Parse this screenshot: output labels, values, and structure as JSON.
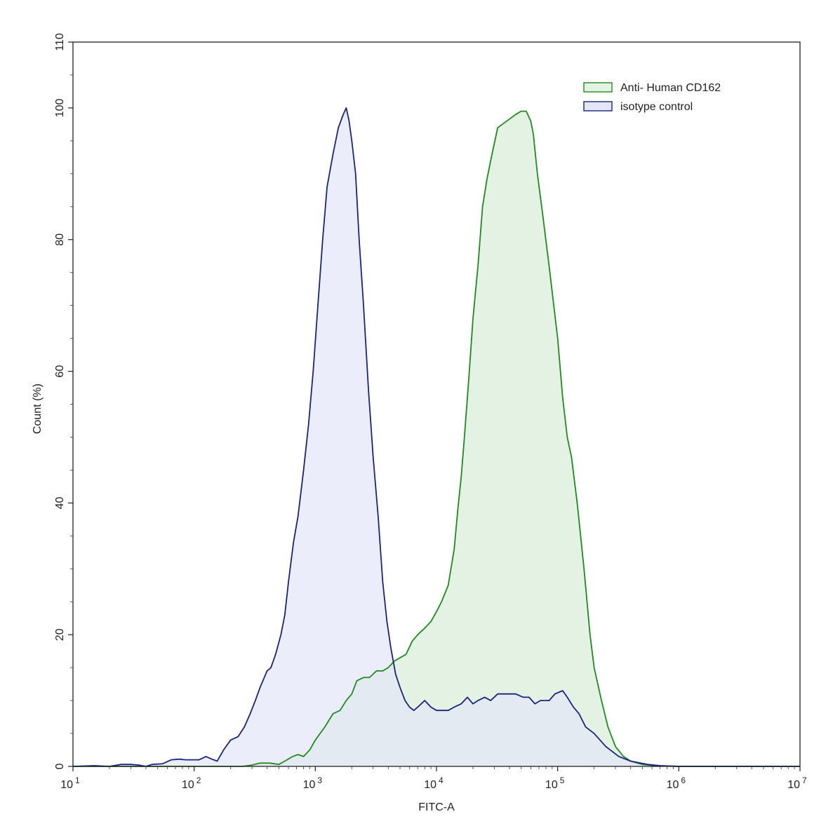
{
  "chart_data": {
    "type": "area",
    "title": "",
    "xlabel": "FITC-A",
    "ylabel": "Count  (%)",
    "x_scale": "log",
    "xlim": [
      10,
      10000000
    ],
    "ylim": [
      0,
      110
    ],
    "x_ticks": [
      {
        "value": 10,
        "base": "10",
        "exp": "1"
      },
      {
        "value": 100,
        "base": "10",
        "exp": "2"
      },
      {
        "value": 1000,
        "base": "10",
        "exp": "3"
      },
      {
        "value": 10000,
        "base": "10",
        "exp": "4"
      },
      {
        "value": 100000,
        "base": "10",
        "exp": "5"
      },
      {
        "value": 1000000,
        "base": "10",
        "exp": "6"
      },
      {
        "value": 10000000,
        "base": "10",
        "exp": "7"
      }
    ],
    "y_ticks": [
      "0",
      "20",
      "40",
      "60",
      "80",
      "100",
      "110"
    ],
    "grid": false,
    "legend_position": "top-right",
    "series": [
      {
        "name": "Anti- Human CD162",
        "stroke": "#1f8a1f",
        "fill": "#e3f2e3",
        "points": [
          [
            10,
            0
          ],
          [
            100,
            0
          ],
          [
            200,
            0
          ],
          [
            250,
            0
          ],
          [
            300,
            0.2
          ],
          [
            350,
            0.5
          ],
          [
            420,
            0.5
          ],
          [
            500,
            0.3
          ],
          [
            560,
            0.8
          ],
          [
            650,
            1.5
          ],
          [
            720,
            1.8
          ],
          [
            800,
            1.5
          ],
          [
            900,
            2.5
          ],
          [
            1000,
            4
          ],
          [
            1200,
            6
          ],
          [
            1400,
            8
          ],
          [
            1600,
            8.5
          ],
          [
            1800,
            10
          ],
          [
            2000,
            11
          ],
          [
            2200,
            13
          ],
          [
            2500,
            13.5
          ],
          [
            2800,
            13.5
          ],
          [
            3200,
            14.5
          ],
          [
            3600,
            14.5
          ],
          [
            4000,
            15
          ],
          [
            4500,
            16
          ],
          [
            5000,
            16.5
          ],
          [
            5600,
            17
          ],
          [
            6300,
            19
          ],
          [
            7000,
            20
          ],
          [
            8000,
            21
          ],
          [
            9000,
            22
          ],
          [
            10000,
            23.5
          ],
          [
            11000,
            25
          ],
          [
            12500,
            27.5
          ],
          [
            14000,
            33
          ],
          [
            15000,
            39
          ],
          [
            16000,
            44
          ],
          [
            17000,
            50
          ],
          [
            18500,
            59
          ],
          [
            20000,
            68
          ],
          [
            22000,
            76
          ],
          [
            24000,
            85
          ],
          [
            26000,
            89
          ],
          [
            28000,
            92
          ],
          [
            32000,
            97
          ],
          [
            38000,
            98
          ],
          [
            45000,
            99
          ],
          [
            50000,
            99.5
          ],
          [
            55000,
            99.5
          ],
          [
            60000,
            98
          ],
          [
            63000,
            96
          ],
          [
            68000,
            90
          ],
          [
            75000,
            84
          ],
          [
            85000,
            76
          ],
          [
            100000,
            65
          ],
          [
            110000,
            56
          ],
          [
            120000,
            50
          ],
          [
            130000,
            47
          ],
          [
            145000,
            40
          ],
          [
            165000,
            30
          ],
          [
            185000,
            20
          ],
          [
            200000,
            15
          ],
          [
            230000,
            10
          ],
          [
            260000,
            6
          ],
          [
            300000,
            3
          ],
          [
            350000,
            1.5
          ],
          [
            400000,
            0.8
          ],
          [
            500000,
            0.3
          ],
          [
            650000,
            0.1
          ],
          [
            1000000,
            0
          ],
          [
            10000000,
            0
          ]
        ]
      },
      {
        "name": "isotype control",
        "stroke": "#1a237e",
        "fill": "#e4e6f8",
        "points": [
          [
            10,
            0
          ],
          [
            15,
            0.1
          ],
          [
            20,
            0
          ],
          [
            25,
            0.3
          ],
          [
            30,
            0.3
          ],
          [
            35,
            0.2
          ],
          [
            40,
            0
          ],
          [
            45,
            0.3
          ],
          [
            55,
            0.4
          ],
          [
            65,
            1
          ],
          [
            75,
            1.1
          ],
          [
            85,
            1
          ],
          [
            95,
            1
          ],
          [
            110,
            1
          ],
          [
            125,
            1.5
          ],
          [
            140,
            1.1
          ],
          [
            155,
            0.8
          ],
          [
            175,
            2.5
          ],
          [
            200,
            4
          ],
          [
            230,
            4.5
          ],
          [
            260,
            6
          ],
          [
            290,
            8
          ],
          [
            320,
            10
          ],
          [
            350,
            12
          ],
          [
            400,
            14.5
          ],
          [
            430,
            15
          ],
          [
            470,
            17
          ],
          [
            520,
            20
          ],
          [
            560,
            23
          ],
          [
            600,
            28
          ],
          [
            660,
            34
          ],
          [
            720,
            38
          ],
          [
            800,
            45
          ],
          [
            880,
            52
          ],
          [
            960,
            60
          ],
          [
            1050,
            70
          ],
          [
            1150,
            80
          ],
          [
            1250,
            88
          ],
          [
            1400,
            93
          ],
          [
            1550,
            97
          ],
          [
            1700,
            99
          ],
          [
            1800,
            100
          ],
          [
            1900,
            98
          ],
          [
            2000,
            95
          ],
          [
            2150,
            90
          ],
          [
            2300,
            80
          ],
          [
            2500,
            70
          ],
          [
            2750,
            57
          ],
          [
            3000,
            47
          ],
          [
            3300,
            38
          ],
          [
            3600,
            28
          ],
          [
            3900,
            22
          ],
          [
            4200,
            18
          ],
          [
            4600,
            14
          ],
          [
            5000,
            12
          ],
          [
            5500,
            10
          ],
          [
            6000,
            9
          ],
          [
            6500,
            8.5
          ],
          [
            7000,
            9
          ],
          [
            8000,
            10
          ],
          [
            9000,
            9
          ],
          [
            10000,
            8.5
          ],
          [
            11000,
            8.5
          ],
          [
            12500,
            8.5
          ],
          [
            14000,
            9
          ],
          [
            16000,
            9.5
          ],
          [
            18000,
            10.5
          ],
          [
            20000,
            9.5
          ],
          [
            22000,
            10
          ],
          [
            25000,
            10.5
          ],
          [
            28000,
            10
          ],
          [
            32000,
            11
          ],
          [
            38000,
            11
          ],
          [
            45000,
            11
          ],
          [
            52000,
            10.5
          ],
          [
            58000,
            10.5
          ],
          [
            65000,
            9.5
          ],
          [
            72000,
            10
          ],
          [
            85000,
            10
          ],
          [
            95000,
            11
          ],
          [
            110000,
            11.5
          ],
          [
            120000,
            10.5
          ],
          [
            135000,
            9
          ],
          [
            150000,
            8
          ],
          [
            170000,
            6
          ],
          [
            200000,
            5
          ],
          [
            250000,
            3
          ],
          [
            320000,
            1.5
          ],
          [
            400000,
            0.8
          ],
          [
            550000,
            0.3
          ],
          [
            700000,
            0.1
          ],
          [
            1000000,
            0
          ],
          [
            10000000,
            0
          ]
        ]
      }
    ]
  }
}
